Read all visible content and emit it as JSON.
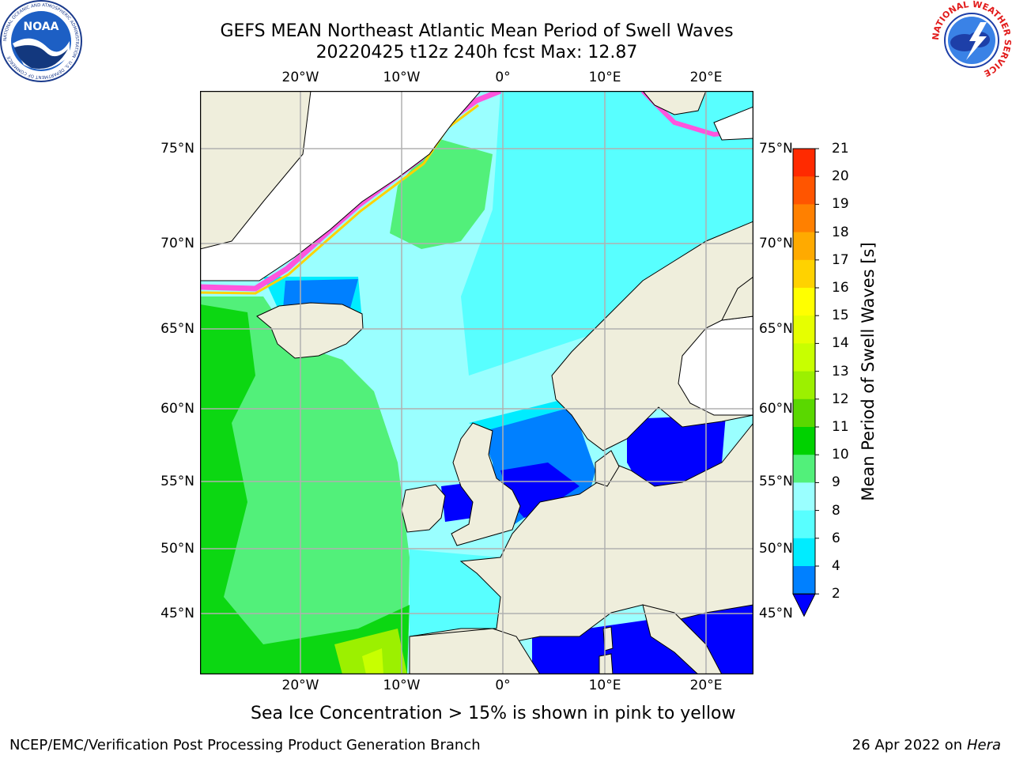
{
  "title_line1": "GEFS MEAN Northeast Atlantic Mean Period of Swell Waves",
  "title_line2": "20220425 t12z 240h fcst   Max: 12.87",
  "lon_labels": [
    "20°W",
    "10°W",
    "0°",
    "10°E",
    "20°E"
  ],
  "lat_labels": [
    "75°N",
    "70°N",
    "65°N",
    "60°N",
    "55°N",
    "50°N",
    "45°N"
  ],
  "colorbar": {
    "label": "Mean Period of Swell Waves [s]",
    "ticks": [
      "21",
      "20",
      "19",
      "18",
      "17",
      "16",
      "15",
      "14",
      "13",
      "12",
      "11",
      "10",
      "9",
      "8",
      "6",
      "4",
      "2"
    ],
    "colors": [
      "#ff0000",
      "#ff2a00",
      "#ff5500",
      "#ff8000",
      "#ffaa00",
      "#ffd200",
      "#ffff00",
      "#e6ff00",
      "#c8ff00",
      "#9cf000",
      "#5ad800",
      "#00d200",
      "#52f07a",
      "#9affff",
      "#58ffff",
      "#00ecff",
      "#0080ff",
      "#0000ff"
    ]
  },
  "note": "Sea Ice Concentration > 15% is shown in pink to yellow",
  "footer_left": "NCEP/EMC/Verification Post Processing Product Generation Branch",
  "footer_date": "26 Apr 2022 on",
  "footer_machine": "Hera",
  "logos": {
    "left": "NOAA",
    "left_ring": "NATIONAL OCEANIC AND ATMOSPHERIC ADMINISTRATION · U.S. DEPARTMENT OF COMMERCE",
    "right": "NATIONAL WEATHER SERVICE"
  }
}
